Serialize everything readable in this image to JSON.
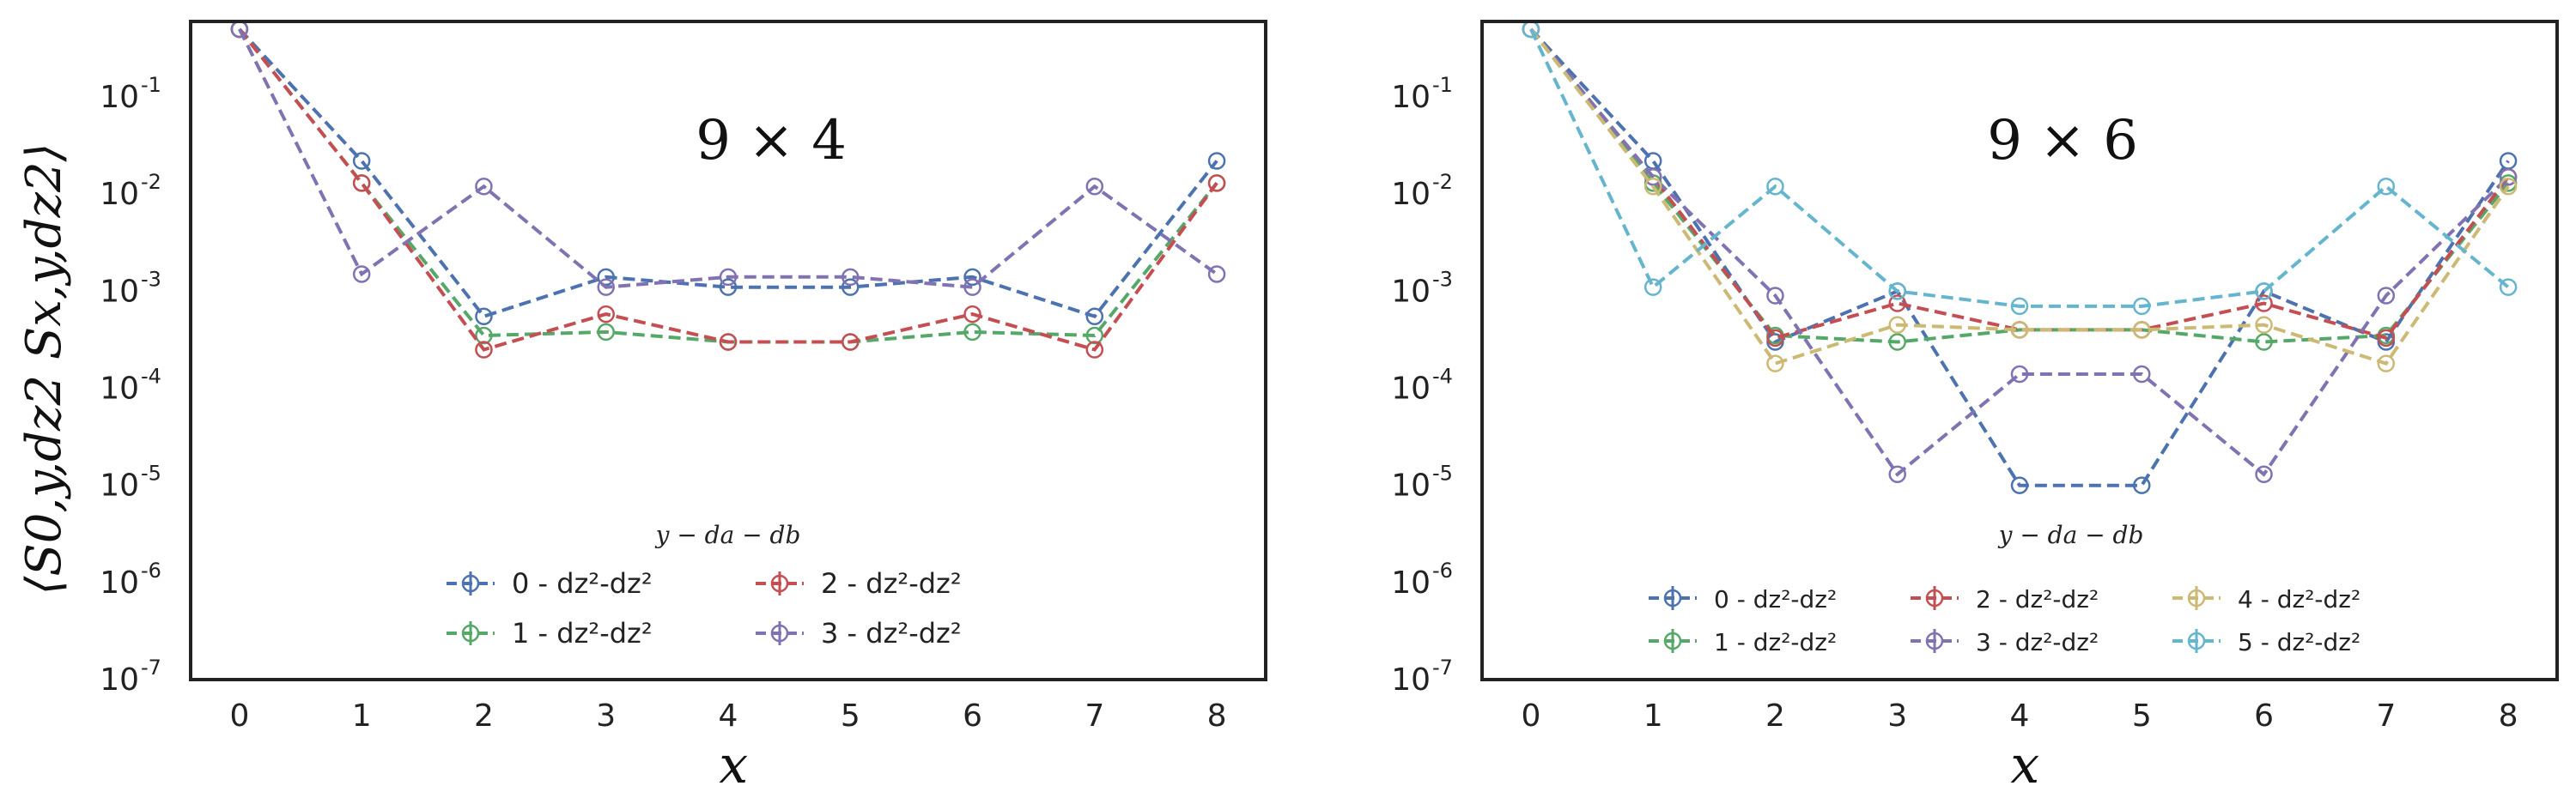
{
  "chart_data": [
    {
      "type": "line",
      "title": "9 × 4",
      "xlabel": "x",
      "ylabel": "⟨S0,y,dz2 Sx,y,dz2⟩",
      "yscale": "log",
      "ylim": [
        1e-07,
        0.6
      ],
      "xlim": [
        -0.4,
        8.4
      ],
      "x": [
        0,
        1,
        2,
        3,
        4,
        5,
        6,
        7,
        8
      ],
      "x_tick_labels": [
        "0",
        "1",
        "2",
        "3",
        "4",
        "5",
        "6",
        "7",
        "8"
      ],
      "y_tick_labels": [
        "10",
        "10",
        "10",
        "10",
        "10",
        "10",
        "10"
      ],
      "y_tick_exponents": [
        "-1",
        "-2",
        "-3",
        "-4",
        "-5",
        "-6",
        "-7"
      ],
      "y_tick_values": [
        0.1,
        0.01,
        0.001,
        0.0001,
        1e-05,
        1e-06,
        1e-07
      ],
      "grid": false,
      "legend": {
        "title": "y − da − db",
        "placement": "lower center",
        "columns": 2
      },
      "series": [
        {
          "name": "0 - dz²-dz²",
          "color": "#4c72b0",
          "values": [
            0.5,
            0.022,
            0.00055,
            0.0014,
            0.0011,
            0.0011,
            0.0014,
            0.00055,
            0.022
          ]
        },
        {
          "name": "1 - dz²-dz²",
          "color": "#55a868",
          "values": [
            0.5,
            0.013,
            0.00035,
            0.00038,
            0.0003,
            0.0003,
            0.00038,
            0.00035,
            0.013
          ]
        },
        {
          "name": "2 - dz²-dz²",
          "color": "#c44e52",
          "values": [
            0.5,
            0.013,
            0.00025,
            0.00058,
            0.0003,
            0.0003,
            0.00058,
            0.00025,
            0.013
          ]
        },
        {
          "name": "3 - dz²-dz²",
          "color": "#8172b2",
          "values": [
            0.5,
            0.0015,
            0.012,
            0.0011,
            0.0014,
            0.0014,
            0.0011,
            0.012,
            0.0015
          ]
        }
      ]
    },
    {
      "type": "line",
      "title": "9 × 6",
      "xlabel": "x",
      "ylabel": "",
      "yscale": "log",
      "ylim": [
        1e-07,
        0.6
      ],
      "xlim": [
        -0.4,
        8.4
      ],
      "x": [
        0,
        1,
        2,
        3,
        4,
        5,
        6,
        7,
        8
      ],
      "x_tick_labels": [
        "0",
        "1",
        "2",
        "3",
        "4",
        "5",
        "6",
        "7",
        "8"
      ],
      "y_tick_labels": [
        "10",
        "10",
        "10",
        "10",
        "10",
        "10",
        "10"
      ],
      "y_tick_exponents": [
        "-1",
        "-2",
        "-3",
        "-4",
        "-5",
        "-6",
        "-7"
      ],
      "y_tick_values": [
        0.1,
        0.01,
        0.001,
        0.0001,
        1e-05,
        1e-06,
        1e-07
      ],
      "grid": false,
      "legend": {
        "title": "y − da − db",
        "placement": "lower center",
        "columns": 3
      },
      "series": [
        {
          "name": "0 - dz²-dz²",
          "color": "#4c72b0",
          "values": [
            0.5,
            0.022,
            0.0003,
            0.001,
            1e-05,
            1e-05,
            0.001,
            0.0003,
            0.022
          ]
        },
        {
          "name": "1 - dz²-dz²",
          "color": "#55a868",
          "values": [
            0.5,
            0.013,
            0.00035,
            0.0003,
            0.0004,
            0.0004,
            0.0003,
            0.00035,
            0.013
          ]
        },
        {
          "name": "2 - dz²-dz²",
          "color": "#c44e52",
          "values": [
            0.5,
            0.015,
            0.00033,
            0.00075,
            0.0004,
            0.0004,
            0.00075,
            0.00033,
            0.015
          ]
        },
        {
          "name": "3 - dz²-dz²",
          "color": "#8172b2",
          "values": [
            0.5,
            0.015,
            0.0009,
            1.3e-05,
            0.00014,
            0.00014,
            1.3e-05,
            0.0009,
            0.015
          ]
        },
        {
          "name": "4 - dz²-dz²",
          "color": "#ccb974",
          "values": [
            0.5,
            0.012,
            0.00018,
            0.00045,
            0.0004,
            0.0004,
            0.00045,
            0.00018,
            0.012
          ]
        },
        {
          "name": "5 - dz²-dz²",
          "color": "#64b5cd",
          "values": [
            0.5,
            0.0011,
            0.012,
            0.001,
            0.0007,
            0.0007,
            0.001,
            0.012,
            0.0011
          ]
        }
      ]
    }
  ]
}
